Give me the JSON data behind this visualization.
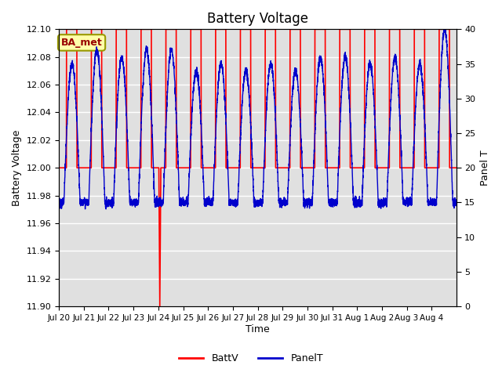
{
  "title": "Battery Voltage",
  "xlabel": "Time",
  "ylabel_left": "Battery Voltage",
  "ylabel_right": "Panel T",
  "ylim_left": [
    11.9,
    12.1
  ],
  "ylim_right": [
    0,
    40
  ],
  "background_color": "#ffffff",
  "plot_bg_color": "#e0e0e0",
  "annotation_text": "BA_met",
  "annotation_bg": "#ffffaa",
  "annotation_border": "#999900",
  "x_tick_labels": [
    "Jul 20",
    "Jul 21",
    "Jul 22",
    "Jul 23",
    "Jul 24",
    "Jul 25",
    "Jul 26",
    "Jul 27",
    "Jul 28",
    "Jul 29",
    "Jul 30",
    "Jul 31",
    "Aug 1",
    "Aug 2",
    "Aug 3",
    "Aug 4"
  ],
  "legend_labels": [
    "BattV",
    "PanelT"
  ],
  "batt_color": "#ff0000",
  "panel_color": "#0000cc"
}
